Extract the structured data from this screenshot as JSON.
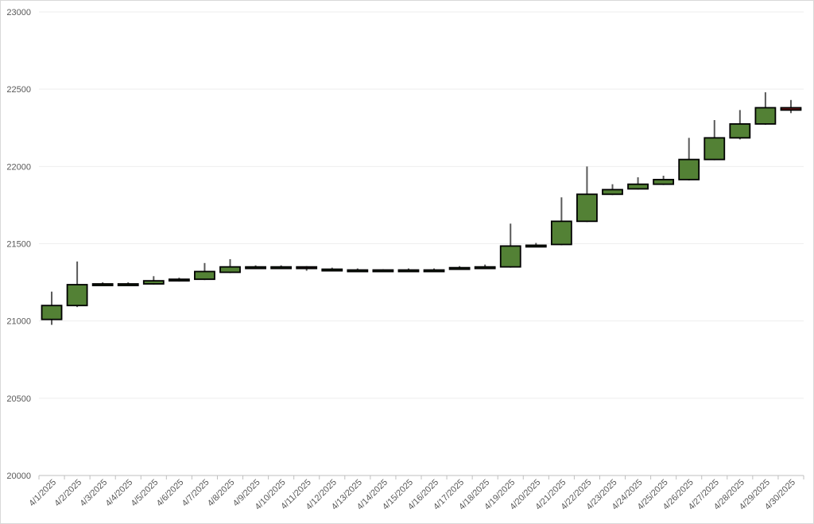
{
  "chart_data": {
    "type": "candlestick",
    "title": "",
    "xlabel": "",
    "ylabel": "",
    "ylim": [
      20000,
      23000
    ],
    "yticks": [
      20000,
      20500,
      21000,
      21500,
      22000,
      22500,
      23000
    ],
    "grid": true,
    "legend": "none",
    "colors": {
      "up": "#538135",
      "down": "#7b1c1c",
      "wick": "#595959",
      "border": "#000000",
      "grid": "#eeeeee",
      "axis": "#bfbfbf"
    },
    "categories": [
      "4/1/2025",
      "4/2/2025",
      "4/3/2025",
      "4/4/2025",
      "4/5/2025",
      "4/6/2025",
      "4/7/2025",
      "4/8/2025",
      "4/9/2025",
      "4/10/2025",
      "4/11/2025",
      "4/12/2025",
      "4/13/2025",
      "4/14/2025",
      "4/15/2025",
      "4/16/2025",
      "4/17/2025",
      "4/18/2025",
      "4/19/2025",
      "4/20/2025",
      "4/21/2025",
      "4/22/2025",
      "4/23/2025",
      "4/24/2025",
      "4/25/2025",
      "4/26/2025",
      "4/27/2025",
      "4/28/2025",
      "4/29/2025",
      "4/30/2025"
    ],
    "open": [
      21010,
      21100,
      21235,
      21235,
      21240,
      21260,
      21270,
      21315,
      21345,
      21345,
      21350,
      21335,
      21330,
      21330,
      21330,
      21330,
      21340,
      21345,
      21350,
      21485,
      21495,
      21645,
      21820,
      21855,
      21885,
      21915,
      22045,
      22185,
      22275,
      22380
    ],
    "high": [
      21190,
      21385,
      21250,
      21250,
      21290,
      21280,
      21375,
      21400,
      21360,
      21360,
      21355,
      21345,
      21340,
      21335,
      21340,
      21340,
      21355,
      21365,
      21630,
      21505,
      21800,
      22000,
      21885,
      21930,
      21940,
      22185,
      22300,
      22365,
      22480,
      22430
    ],
    "low": [
      20975,
      21090,
      21230,
      21230,
      21235,
      21255,
      21265,
      21310,
      21340,
      21340,
      21325,
      21330,
      21325,
      21325,
      21325,
      21325,
      21335,
      21340,
      21345,
      21480,
      21490,
      21640,
      21815,
      21850,
      21880,
      21910,
      22040,
      22175,
      22270,
      22345
    ],
    "close": [
      21100,
      21235,
      21240,
      21240,
      21260,
      21270,
      21320,
      21350,
      21350,
      21350,
      21340,
      21335,
      21330,
      21330,
      21330,
      21330,
      21345,
      21350,
      21485,
      21490,
      21645,
      21820,
      21850,
      21885,
      21915,
      22045,
      22185,
      22275,
      22380,
      22365
    ]
  }
}
